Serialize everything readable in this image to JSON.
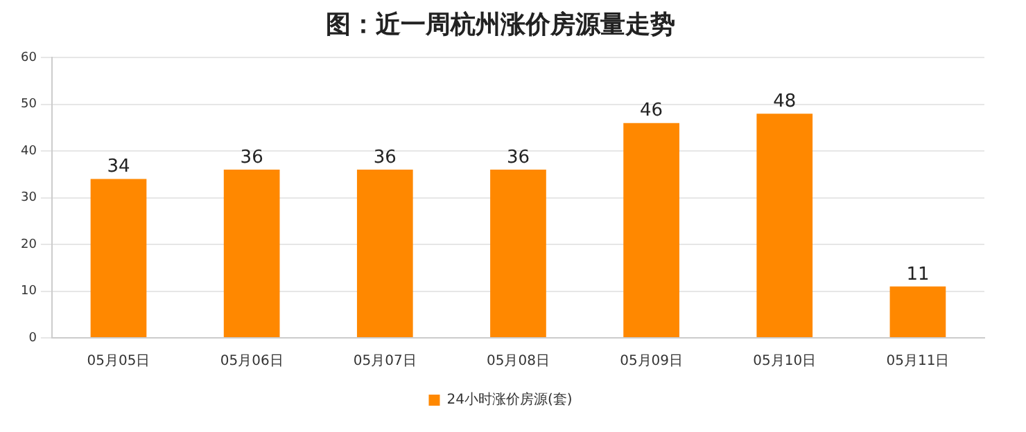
{
  "chart_data": {
    "type": "bar",
    "title": "图：近一周杭州涨价房源量走势",
    "categories": [
      "05月05日",
      "05月06日",
      "05月07日",
      "05月08日",
      "05月09日",
      "05月10日",
      "05月11日"
    ],
    "series": [
      {
        "name": "24小时涨价房源(套)",
        "color": "#ff8800",
        "values": [
          34,
          36,
          36,
          36,
          46,
          48,
          11
        ]
      }
    ],
    "ylim": [
      0,
      60
    ],
    "yticks": [
      0,
      10,
      20,
      30,
      40,
      50,
      60
    ],
    "grid": "y",
    "legend": "bottom",
    "data_labels": true
  }
}
